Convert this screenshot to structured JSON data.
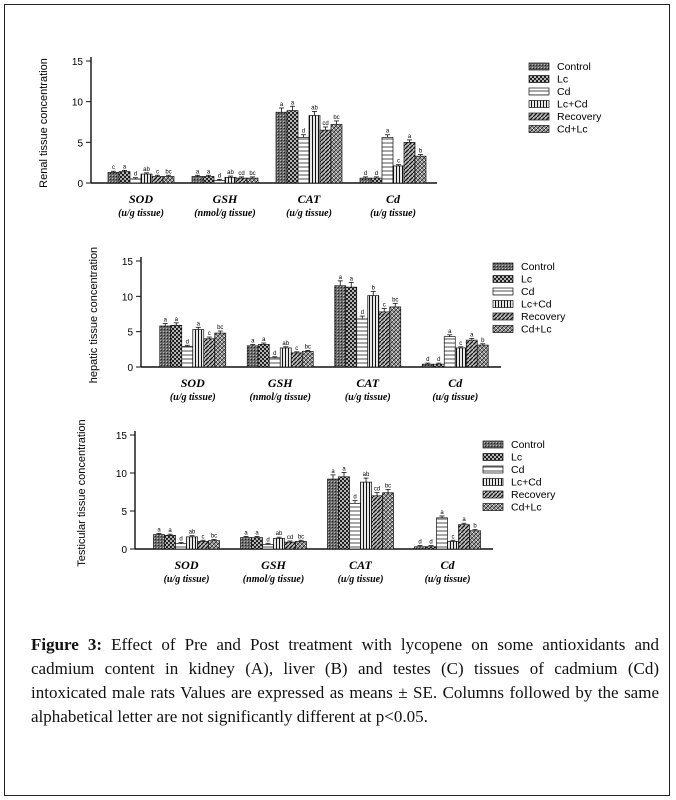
{
  "legend": [
    "Control",
    "Lc",
    "Cd",
    "Lc+Cd",
    "Recovery",
    "Cd+Lc"
  ],
  "chart_data": [
    {
      "type": "bar",
      "panel": "A",
      "ylabel": "Renal tissue concentration",
      "ylim": [
        0,
        15
      ],
      "yticks": [
        "0",
        "5",
        "10",
        "15"
      ],
      "categories": [
        "SOD",
        "GSH",
        "CAT",
        "Cd"
      ],
      "units": [
        "(u/g tissue)",
        "(nmol/g tissue)",
        "(u/g tissue)",
        "(u/g tissue)"
      ],
      "legend_position": "right",
      "series": [
        {
          "name": "Control",
          "values": [
            1.3,
            0.8,
            8.7,
            0.6
          ],
          "letters": [
            "c",
            "a",
            "a",
            "d"
          ]
        },
        {
          "name": "Lc",
          "values": [
            1.4,
            0.8,
            8.9,
            0.6
          ],
          "letters": [
            "a",
            "a",
            "a",
            "d"
          ]
        },
        {
          "name": "Cd",
          "values": [
            0.5,
            0.3,
            5.6,
            5.6
          ],
          "letters": [
            "d",
            "d",
            "d",
            "a"
          ]
        },
        {
          "name": "Lc+Cd",
          "values": [
            1.1,
            0.7,
            8.3,
            2.1
          ],
          "letters": [
            "ab",
            "ab",
            "ab",
            "c"
          ]
        },
        {
          "name": "Recovery",
          "values": [
            0.8,
            0.6,
            6.5,
            5.0
          ],
          "letters": [
            "c",
            "cd",
            "cd",
            "a"
          ]
        },
        {
          "name": "Cd+Lc",
          "values": [
            0.8,
            0.6,
            7.2,
            3.3
          ],
          "letters": [
            "bc",
            "bc",
            "bc",
            "b"
          ]
        }
      ]
    },
    {
      "type": "bar",
      "panel": "B",
      "ylabel": "hepatic tissue concentration",
      "ylim": [
        0,
        15
      ],
      "yticks": [
        "0",
        "5",
        "10",
        "15"
      ],
      "categories": [
        "SOD",
        "GSH",
        "CAT",
        "Cd"
      ],
      "units": [
        "(u/g tissue)",
        "(nmol/g tissue)",
        "(u/g tissue)",
        "(u/g tissue)"
      ],
      "legend_position": "right",
      "series": [
        {
          "name": "Control",
          "values": [
            5.8,
            3.0,
            11.5,
            0.4
          ],
          "letters": [
            "a",
            "a",
            "a",
            "d"
          ]
        },
        {
          "name": "Lc",
          "values": [
            5.9,
            3.2,
            11.3,
            0.4
          ],
          "letters": [
            "a",
            "a",
            "a",
            "d"
          ]
        },
        {
          "name": "Cd",
          "values": [
            2.9,
            1.3,
            6.8,
            4.3
          ],
          "letters": [
            "d",
            "d",
            "d",
            "a"
          ]
        },
        {
          "name": "Lc+Cd",
          "values": [
            5.3,
            2.7,
            10.1,
            2.7
          ],
          "letters": [
            "a",
            "ab",
            "b",
            "c"
          ]
        },
        {
          "name": "Recovery",
          "values": [
            4.0,
            2.0,
            7.8,
            3.8
          ],
          "letters": [
            "c",
            "c",
            "c",
            "a"
          ]
        },
        {
          "name": "Cd+Lc",
          "values": [
            4.8,
            2.2,
            8.5,
            3.1
          ],
          "letters": [
            "bc",
            "bc",
            "bc",
            "b"
          ]
        }
      ]
    },
    {
      "type": "bar",
      "panel": "C",
      "ylabel": "Testicular tissue concentration",
      "ylim": [
        0,
        15
      ],
      "yticks": [
        "0",
        "5",
        "10",
        "15"
      ],
      "categories": [
        "SOD",
        "GSH",
        "CAT",
        "Cd"
      ],
      "units": [
        "(u/g tissue)",
        "(nmol/g tissue)",
        "(u/g tissue)",
        "(u/g tissue)"
      ],
      "legend_position": "right",
      "series": [
        {
          "name": "Control",
          "values": [
            1.9,
            1.5,
            9.2,
            0.3
          ],
          "letters": [
            "a",
            "a",
            "a",
            "d"
          ]
        },
        {
          "name": "Lc",
          "values": [
            1.8,
            1.5,
            9.5,
            0.3
          ],
          "letters": [
            "a",
            "a",
            "a",
            "d"
          ]
        },
        {
          "name": "Cd",
          "values": [
            0.7,
            0.6,
            6.0,
            4.1
          ],
          "letters": [
            "d",
            "d",
            "d",
            "a"
          ]
        },
        {
          "name": "Lc+Cd",
          "values": [
            1.6,
            1.4,
            8.8,
            1.0
          ],
          "letters": [
            "ab",
            "ab",
            "ab",
            "c"
          ]
        },
        {
          "name": "Recovery",
          "values": [
            1.0,
            0.9,
            7.0,
            3.2
          ],
          "letters": [
            "c",
            "cd",
            "cd",
            "a"
          ]
        },
        {
          "name": "Cd+Lc",
          "values": [
            1.1,
            1.0,
            7.4,
            2.4
          ],
          "letters": [
            "bc",
            "bc",
            "bc",
            "b"
          ]
        }
      ]
    }
  ],
  "caption": {
    "label": "Figure 3:",
    "text": " Effect of Pre and Post treatment with lycopene on some antioxidants and cadmium content in kidney (A), liver (B) and testes (C) tissues of cadmium (Cd) intoxicated male rats Values are expressed as means ± SE. Columns followed by the same alphabetical letter are not significantly different at p<0.05."
  }
}
